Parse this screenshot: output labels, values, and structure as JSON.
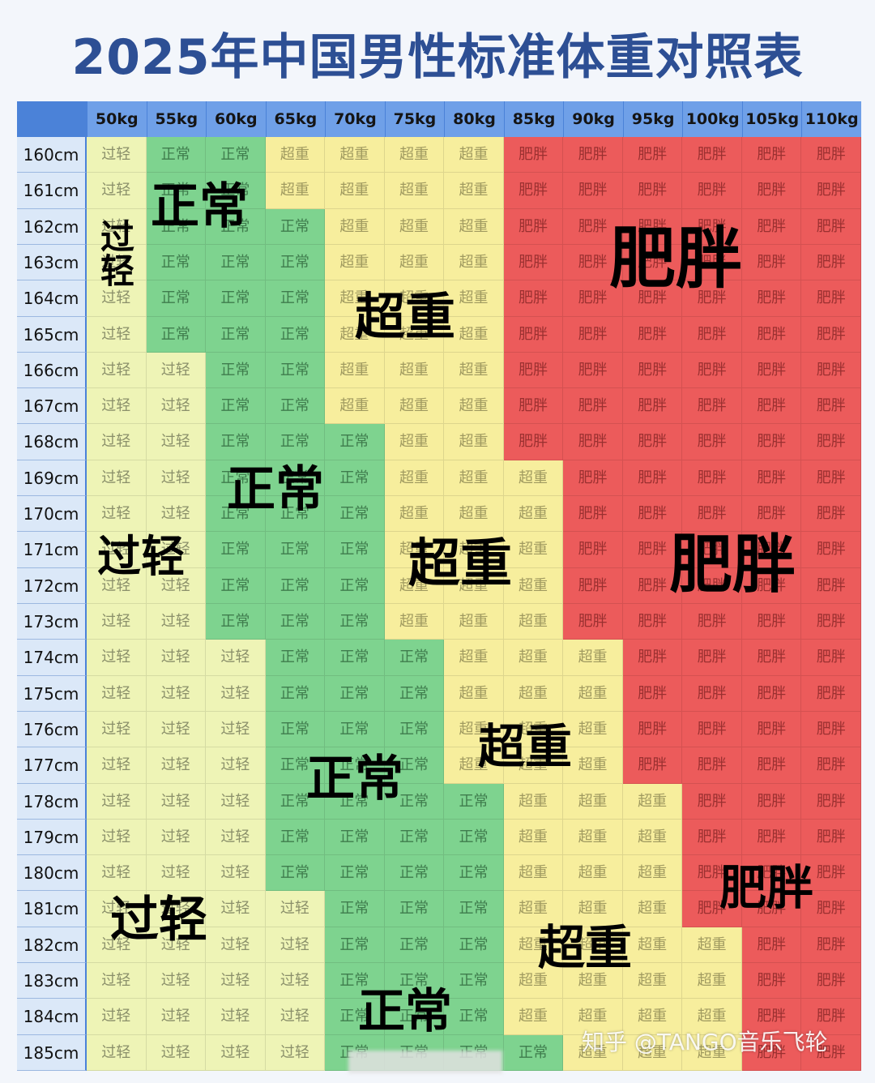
{
  "title": "2025年中国男性标准体重对照表",
  "weights": [
    "50kg",
    "55kg",
    "60kg",
    "65kg",
    "70kg",
    "75kg",
    "80kg",
    "85kg",
    "90kg",
    "95kg",
    "100kg",
    "105kg",
    "110kg"
  ],
  "heights": [
    "160cm",
    "161cm",
    "162cm",
    "163cm",
    "164cm",
    "165cm",
    "166cm",
    "167cm",
    "168cm",
    "169cm",
    "170cm",
    "171cm",
    "172cm",
    "173cm",
    "174cm",
    "175cm",
    "176cm",
    "177cm",
    "178cm",
    "179cm",
    "180cm",
    "181cm",
    "182cm",
    "183cm",
    "184cm",
    "185cm"
  ],
  "category_labels": {
    "L": "过轻",
    "N": "正常",
    "O": "超重",
    "F": "肥胖"
  },
  "category_colors": {
    "L": "#eef4b6",
    "N": "#7ed38f",
    "O": "#f7ee9d",
    "F": "#ec5b5b"
  },
  "grid": [
    "LNNOOOOFFFFFF",
    "LNNOOOOFFFFFF",
    "LNNNOOOFFFFFF",
    "LNNNOOOFFFFFF",
    "LNNNOOOFFFFFF",
    "LNNNOOOFFFFFF",
    "LLNNOOOFFFFFF",
    "LLNNOOOFFFFFF",
    "LLNNNOOFFFFFF",
    "LLNNNOOOFFFFF",
    "LLNNNOOOFFFFF",
    "LLNNNOOOFFFFF",
    "LLNNNOOOFFFFF",
    "LLNNNOOOFFFFF",
    "LLLNNNOOOFFFF",
    "LLLNNNOOOFFFF",
    "LLLNNNOOOFFFF",
    "LLLNNNOOOFFFF",
    "LLLNNNNOOOFFF",
    "LLLNNNNOOOFFF",
    "LLLNNNNOOOFFF",
    "LLLLNNNOOOFFF",
    "LLLLNNNOOOOFF",
    "LLLLNNNOOOOFF",
    "LLLLNNNOOOOFF",
    "LLLLNNNNOOOFF"
  ],
  "overlay": {
    "normal_1": "正常",
    "normal_2": "正常",
    "normal_3": "正常",
    "normal_4": "正常",
    "light_1": "过\n轻",
    "light_2": "过轻",
    "light_3": "过轻",
    "over_1": "超重",
    "over_2": "超重",
    "over_3": "超重",
    "over_4": "超重",
    "obese_1": "肥胖",
    "obese_2": "肥胖",
    "obese_3": "肥胖"
  },
  "watermark": "知乎 @TANGO音乐飞轮"
}
